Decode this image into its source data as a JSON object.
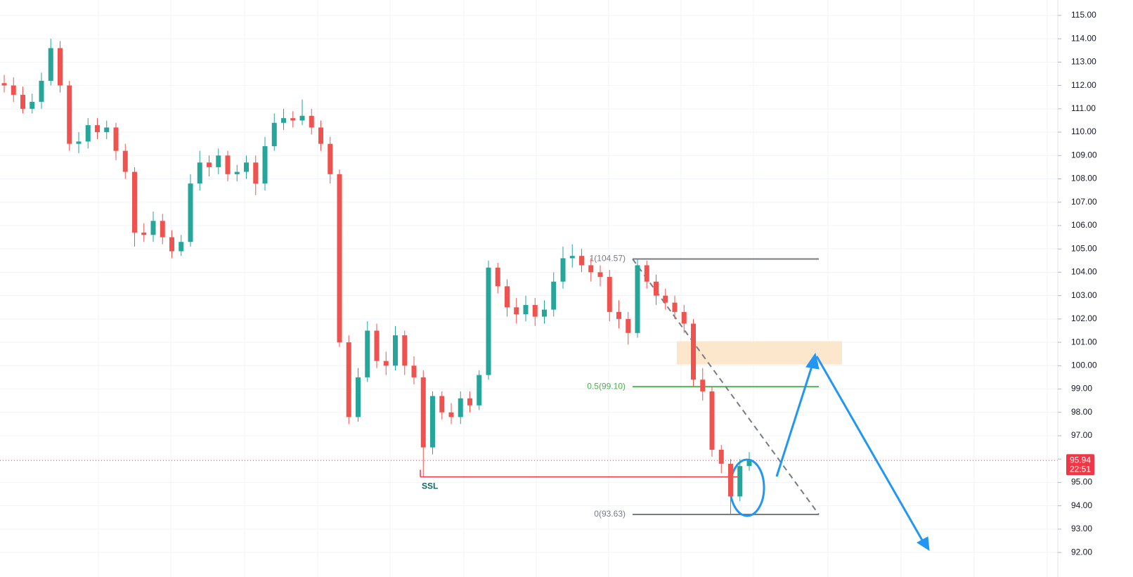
{
  "chart_data": {
    "type": "candlestick",
    "up_color": "#26a69a",
    "down_color": "#ef5350",
    "grid": true,
    "ylim": [
      90.95,
      115.66
    ],
    "yticks": [
      {
        "value": 92,
        "label": "92.00"
      },
      {
        "value": 93,
        "label": "93.00"
      },
      {
        "value": 94,
        "label": "94.00"
      },
      {
        "value": 95,
        "label": "95.00"
      },
      {
        "value": 96,
        "label": "96.00"
      },
      {
        "value": 97,
        "label": "97.00"
      },
      {
        "value": 98,
        "label": "98.00"
      },
      {
        "value": 99,
        "label": "99.00"
      },
      {
        "value": 100,
        "label": "100.00"
      },
      {
        "value": 101,
        "label": "101.00"
      },
      {
        "value": 102,
        "label": "102.00"
      },
      {
        "value": 103,
        "label": "103.00"
      },
      {
        "value": 104,
        "label": "104.00"
      },
      {
        "value": 105,
        "label": "105.00"
      },
      {
        "value": 106,
        "label": "106.00"
      },
      {
        "value": 107,
        "label": "107.00"
      },
      {
        "value": 108,
        "label": "108.00"
      },
      {
        "value": 109,
        "label": "109.00"
      },
      {
        "value": 110,
        "label": "110.00"
      },
      {
        "value": 111,
        "label": "111.00"
      },
      {
        "value": 112,
        "label": "112.00"
      },
      {
        "value": 113,
        "label": "113.00"
      },
      {
        "value": 114,
        "label": "114.00"
      },
      {
        "value": 115,
        "label": "115.00"
      }
    ],
    "open": [
      112.1,
      112.0,
      111.6,
      111.0,
      111.3,
      112.2,
      113.6,
      112.0,
      109.5,
      109.6,
      110.3,
      110.0,
      110.2,
      109.2,
      108.3,
      105.7,
      105.6,
      106.2,
      105.5,
      104.9,
      105.3,
      107.8,
      108.7,
      108.5,
      109.0,
      108.2,
      108.3,
      108.7,
      107.8,
      109.4,
      110.4,
      110.6,
      110.5,
      110.7,
      110.2,
      109.5,
      108.2,
      101.0,
      97.8,
      99.5,
      101.5,
      100.2,
      100.0,
      101.3,
      100.0,
      99.5,
      96.5,
      98.7,
      98.0,
      97.8,
      98.6,
      98.3,
      99.6,
      104.2,
      103.4,
      102.5,
      102.2,
      102.6,
      102.1,
      102.4,
      103.6,
      104.6,
      104.7,
      104.3,
      104.0,
      103.8,
      102.3,
      102.0,
      101.4,
      104.3,
      103.6,
      103.0,
      102.7,
      102.3,
      101.8,
      99.4,
      98.9,
      96.4,
      95.8,
      94.4,
      95.7
    ],
    "high": [
      112.45,
      112.35,
      111.95,
      111.65,
      112.55,
      114.0,
      113.9,
      112.2,
      110.0,
      110.6,
      110.6,
      110.5,
      110.4,
      109.5,
      108.5,
      106.1,
      106.6,
      106.5,
      105.8,
      105.6,
      108.2,
      109.2,
      109.0,
      109.3,
      109.2,
      108.6,
      109.0,
      109.0,
      109.8,
      110.8,
      111.0,
      110.9,
      111.4,
      111.0,
      110.5,
      109.8,
      108.4,
      101.3,
      99.9,
      101.9,
      101.8,
      100.6,
      101.7,
      101.5,
      100.4,
      99.8,
      98.9,
      98.9,
      98.4,
      98.9,
      98.9,
      99.8,
      104.5,
      104.4,
      103.7,
      102.9,
      103.0,
      102.9,
      102.8,
      104.0,
      105.1,
      105.2,
      105.0,
      104.6,
      104.3,
      104.1,
      102.8,
      102.3,
      104.6,
      104.5,
      103.9,
      103.3,
      103.0,
      102.6,
      102.0,
      99.9,
      99.1,
      96.6,
      96.0,
      96.0,
      96.3
    ],
    "low": [
      111.7,
      111.3,
      110.8,
      110.8,
      111.0,
      112.0,
      111.7,
      109.2,
      109.1,
      109.3,
      109.7,
      109.7,
      108.8,
      108.0,
      105.1,
      105.3,
      105.3,
      105.2,
      104.6,
      104.7,
      105.1,
      107.5,
      108.1,
      108.2,
      107.9,
      107.9,
      108.0,
      107.3,
      107.5,
      109.2,
      110.1,
      110.2,
      110.3,
      109.9,
      109.2,
      107.8,
      100.8,
      97.5,
      97.6,
      99.3,
      99.9,
      99.6,
      99.8,
      99.6,
      99.2,
      95.24,
      96.2,
      97.7,
      97.5,
      97.5,
      98.0,
      98.1,
      99.4,
      103.1,
      102.1,
      101.8,
      101.9,
      101.7,
      101.8,
      102.1,
      103.3,
      104.2,
      104.0,
      103.6,
      103.4,
      101.9,
      101.6,
      100.9,
      101.2,
      103.3,
      102.6,
      102.4,
      102.0,
      101.4,
      99.1,
      98.5,
      96.1,
      95.4,
      93.63,
      94.2,
      95.5
    ],
    "close": [
      112.0,
      111.6,
      111.0,
      111.3,
      112.2,
      113.6,
      112.0,
      109.5,
      109.6,
      110.3,
      110.0,
      110.2,
      109.2,
      108.3,
      105.7,
      105.6,
      106.2,
      105.5,
      104.9,
      105.3,
      107.8,
      108.7,
      108.5,
      109.0,
      108.2,
      108.3,
      108.7,
      107.8,
      109.4,
      110.4,
      110.6,
      110.5,
      110.7,
      110.2,
      109.5,
      108.2,
      101.0,
      97.8,
      99.5,
      101.5,
      100.2,
      100.0,
      101.3,
      100.0,
      99.5,
      96.5,
      98.7,
      98.0,
      97.8,
      98.6,
      98.3,
      99.6,
      104.2,
      103.4,
      102.5,
      102.2,
      102.6,
      102.1,
      102.4,
      103.6,
      104.6,
      104.7,
      104.3,
      104.0,
      103.8,
      102.3,
      102.0,
      101.4,
      104.3,
      103.6,
      103.0,
      102.7,
      102.3,
      101.8,
      99.4,
      98.9,
      96.4,
      95.8,
      94.4,
      95.7,
      95.94
    ],
    "fib_levels": [
      {
        "label": "1(104.57)",
        "value": 104.57,
        "color": "#787b86"
      },
      {
        "label": "0.5(99.10)",
        "value": 99.1,
        "color": "#4caf50"
      },
      {
        "label": "0(93.63)",
        "value": 93.63,
        "color": "#787b86"
      }
    ],
    "ssl": {
      "label": "SSL",
      "value": 95.24,
      "color": "#f23645"
    },
    "zone": {
      "low": 100.05,
      "high": 101.05,
      "color": "#fde7cc"
    },
    "last_price": {
      "value": 95.94,
      "time": "22:51",
      "color": "#f23645"
    }
  }
}
